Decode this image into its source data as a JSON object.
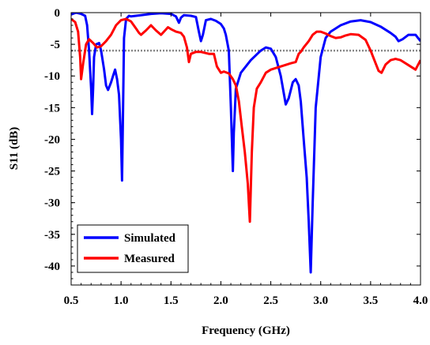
{
  "chart_data": {
    "type": "line",
    "xlabel": "Frequency (GHz)",
    "ylabel": "S11 (dB)",
    "xlim": [
      0.5,
      4.0
    ],
    "ylim": [
      -43,
      0
    ],
    "xticks": [
      "0.5",
      "1.0",
      "1.5",
      "2.0",
      "2.5",
      "3.0",
      "3.5",
      "4.0"
    ],
    "yticks": [
      "0",
      "-5",
      "-10",
      "-15",
      "-20",
      "-25",
      "-30",
      "-35",
      "-40"
    ],
    "grid": false,
    "legend_position": "bottom-left",
    "reference_line": {
      "y": -6,
      "style": "dotted",
      "color": "#888888"
    },
    "series": [
      {
        "name": "Simulated",
        "color": "#0000ff",
        "points": [
          [
            0.5,
            -0.3
          ],
          [
            0.55,
            0.0
          ],
          [
            0.6,
            -0.2
          ],
          [
            0.64,
            -0.5
          ],
          [
            0.66,
            -2.0
          ],
          [
            0.68,
            -6.0
          ],
          [
            0.7,
            -12.0
          ],
          [
            0.71,
            -16.0
          ],
          [
            0.72,
            -12.0
          ],
          [
            0.73,
            -7.0
          ],
          [
            0.75,
            -5.0
          ],
          [
            0.78,
            -4.8
          ],
          [
            0.8,
            -6.0
          ],
          [
            0.83,
            -9.0
          ],
          [
            0.85,
            -11.5
          ],
          [
            0.87,
            -12.2
          ],
          [
            0.9,
            -11.0
          ],
          [
            0.92,
            -10.0
          ],
          [
            0.94,
            -9.0
          ],
          [
            0.96,
            -10.5
          ],
          [
            0.98,
            -13.0
          ],
          [
            1.0,
            -20.0
          ],
          [
            1.01,
            -26.5
          ],
          [
            1.02,
            -15.0
          ],
          [
            1.03,
            -4.0
          ],
          [
            1.05,
            -1.0
          ],
          [
            1.08,
            -0.5
          ],
          [
            1.1,
            -0.6
          ],
          [
            1.2,
            -0.4
          ],
          [
            1.3,
            -0.2
          ],
          [
            1.4,
            -0.1
          ],
          [
            1.5,
            -0.2
          ],
          [
            1.55,
            -0.6
          ],
          [
            1.58,
            -1.6
          ],
          [
            1.6,
            -0.8
          ],
          [
            1.63,
            -0.4
          ],
          [
            1.7,
            -0.5
          ],
          [
            1.75,
            -0.7
          ],
          [
            1.78,
            -3.0
          ],
          [
            1.8,
            -4.5
          ],
          [
            1.82,
            -3.5
          ],
          [
            1.85,
            -1.2
          ],
          [
            1.9,
            -1.0
          ],
          [
            1.95,
            -1.3
          ],
          [
            2.0,
            -1.8
          ],
          [
            2.03,
            -2.5
          ],
          [
            2.05,
            -3.5
          ],
          [
            2.08,
            -6.0
          ],
          [
            2.1,
            -15.0
          ],
          [
            2.12,
            -25.0
          ],
          [
            2.13,
            -19.0
          ],
          [
            2.15,
            -12.0
          ],
          [
            2.2,
            -9.5
          ],
          [
            2.3,
            -7.5
          ],
          [
            2.4,
            -6.0
          ],
          [
            2.45,
            -5.5
          ],
          [
            2.5,
            -5.7
          ],
          [
            2.55,
            -7.0
          ],
          [
            2.6,
            -10.0
          ],
          [
            2.65,
            -14.5
          ],
          [
            2.68,
            -13.5
          ],
          [
            2.72,
            -11.0
          ],
          [
            2.75,
            -10.5
          ],
          [
            2.78,
            -11.5
          ],
          [
            2.8,
            -14.0
          ],
          [
            2.83,
            -20.0
          ],
          [
            2.86,
            -26.0
          ],
          [
            2.88,
            -33.0
          ],
          [
            2.9,
            -41.0
          ],
          [
            2.92,
            -30.0
          ],
          [
            2.95,
            -15.0
          ],
          [
            3.0,
            -7.0
          ],
          [
            3.05,
            -4.0
          ],
          [
            3.1,
            -3.0
          ],
          [
            3.2,
            -2.0
          ],
          [
            3.3,
            -1.4
          ],
          [
            3.4,
            -1.2
          ],
          [
            3.5,
            -1.5
          ],
          [
            3.6,
            -2.2
          ],
          [
            3.7,
            -3.2
          ],
          [
            3.75,
            -3.8
          ],
          [
            3.78,
            -4.5
          ],
          [
            3.82,
            -4.2
          ],
          [
            3.88,
            -3.5
          ],
          [
            3.95,
            -3.5
          ],
          [
            4.0,
            -4.5
          ]
        ]
      },
      {
        "name": "Measured",
        "color": "#ff0000",
        "points": [
          [
            0.5,
            -1.0
          ],
          [
            0.54,
            -1.5
          ],
          [
            0.57,
            -3.0
          ],
          [
            0.59,
            -7.0
          ],
          [
            0.6,
            -10.5
          ],
          [
            0.62,
            -8.0
          ],
          [
            0.65,
            -5.0
          ],
          [
            0.68,
            -4.2
          ],
          [
            0.72,
            -4.8
          ],
          [
            0.76,
            -5.5
          ],
          [
            0.8,
            -5.3
          ],
          [
            0.85,
            -4.5
          ],
          [
            0.9,
            -3.5
          ],
          [
            0.95,
            -2.0
          ],
          [
            1.0,
            -1.2
          ],
          [
            1.05,
            -1.0
          ],
          [
            1.1,
            -1.4
          ],
          [
            1.15,
            -2.5
          ],
          [
            1.18,
            -3.2
          ],
          [
            1.2,
            -3.5
          ],
          [
            1.25,
            -2.8
          ],
          [
            1.3,
            -2.0
          ],
          [
            1.35,
            -2.8
          ],
          [
            1.4,
            -3.5
          ],
          [
            1.43,
            -3.0
          ],
          [
            1.47,
            -2.3
          ],
          [
            1.5,
            -2.6
          ],
          [
            1.55,
            -3.0
          ],
          [
            1.6,
            -3.2
          ],
          [
            1.63,
            -3.8
          ],
          [
            1.66,
            -5.5
          ],
          [
            1.68,
            -7.8
          ],
          [
            1.7,
            -6.5
          ],
          [
            1.75,
            -6.2
          ],
          [
            1.8,
            -6.2
          ],
          [
            1.88,
            -6.5
          ],
          [
            1.93,
            -6.5
          ],
          [
            1.96,
            -8.5
          ],
          [
            2.0,
            -9.5
          ],
          [
            2.03,
            -9.3
          ],
          [
            2.08,
            -9.6
          ],
          [
            2.12,
            -10.5
          ],
          [
            2.15,
            -11.5
          ],
          [
            2.18,
            -14.0
          ],
          [
            2.21,
            -18.0
          ],
          [
            2.24,
            -22.0
          ],
          [
            2.27,
            -27.0
          ],
          [
            2.29,
            -33.0
          ],
          [
            2.31,
            -22.0
          ],
          [
            2.33,
            -15.0
          ],
          [
            2.36,
            -12.0
          ],
          [
            2.4,
            -11.0
          ],
          [
            2.45,
            -9.5
          ],
          [
            2.5,
            -9.0
          ],
          [
            2.6,
            -8.5
          ],
          [
            2.7,
            -8.0
          ],
          [
            2.75,
            -7.8
          ],
          [
            2.78,
            -6.5
          ],
          [
            2.8,
            -6.2
          ],
          [
            2.83,
            -5.5
          ],
          [
            2.88,
            -4.5
          ],
          [
            2.92,
            -3.5
          ],
          [
            2.96,
            -3.0
          ],
          [
            3.0,
            -3.0
          ],
          [
            3.05,
            -3.3
          ],
          [
            3.1,
            -3.7
          ],
          [
            3.15,
            -4.0
          ],
          [
            3.2,
            -3.9
          ],
          [
            3.25,
            -3.6
          ],
          [
            3.3,
            -3.4
          ],
          [
            3.38,
            -3.5
          ],
          [
            3.45,
            -4.3
          ],
          [
            3.5,
            -6.0
          ],
          [
            3.55,
            -8.0
          ],
          [
            3.58,
            -9.2
          ],
          [
            3.61,
            -9.5
          ],
          [
            3.65,
            -8.2
          ],
          [
            3.7,
            -7.5
          ],
          [
            3.75,
            -7.3
          ],
          [
            3.8,
            -7.5
          ],
          [
            3.85,
            -8.0
          ],
          [
            3.9,
            -8.5
          ],
          [
            3.95,
            -9.0
          ],
          [
            4.0,
            -7.5
          ]
        ]
      }
    ]
  }
}
